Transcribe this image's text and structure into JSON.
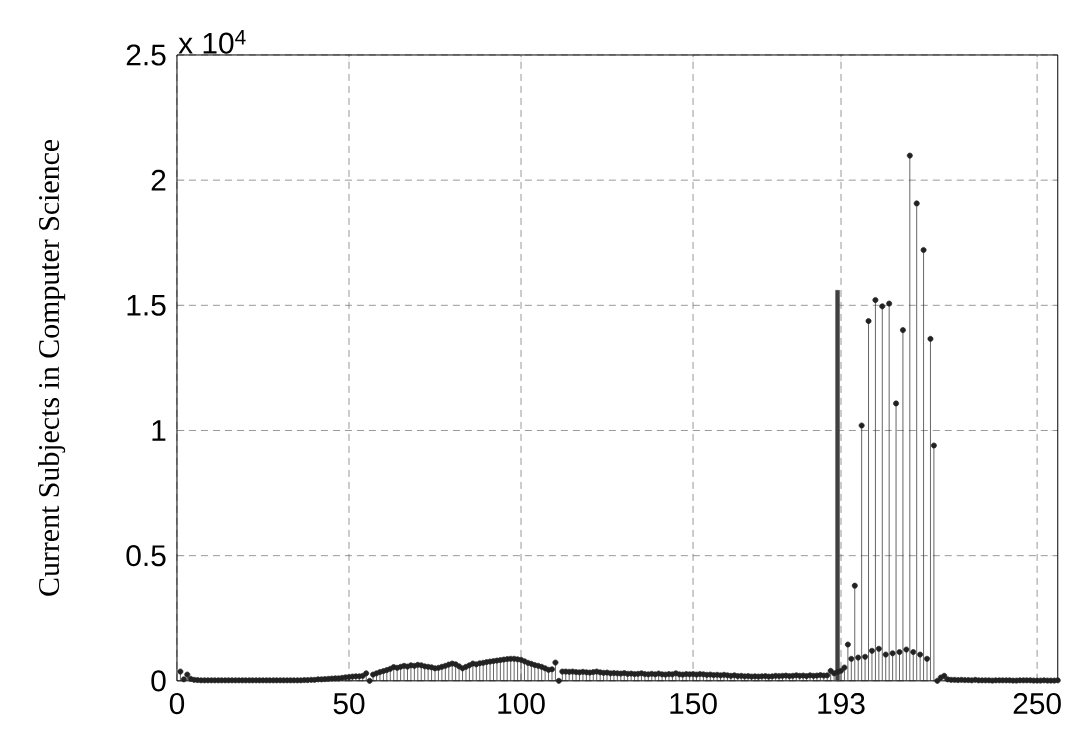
{
  "chart_data": {
    "type": "lollipop",
    "ylabel": "Current Subjects in Computer Science",
    "annotations": [
      "x 10$^{4}$"
    ],
    "xlim": [
      0,
      256
    ],
    "xticks": [
      0,
      50,
      100,
      150,
      193,
      250
    ],
    "ylim": [
      0,
      2.5
    ],
    "yticks": [
      0,
      0.5,
      1,
      1.5,
      2,
      2.5
    ],
    "grid": true,
    "marker": "circle",
    "series": [
      {
        "color": "#222222",
        "x": [
          1,
          2,
          3,
          4,
          5,
          6,
          7,
          8,
          9,
          10,
          11,
          12,
          13,
          14,
          15,
          16,
          17,
          18,
          19,
          20,
          21,
          22,
          23,
          24,
          25,
          26,
          27,
          28,
          29,
          30,
          31,
          32,
          33,
          34,
          35,
          36,
          37,
          38,
          39,
          40,
          41,
          42,
          43,
          44,
          45,
          46,
          47,
          48,
          49,
          50,
          51,
          52,
          53,
          54,
          55,
          56,
          57,
          58,
          59,
          60,
          61,
          62,
          63,
          64,
          65,
          66,
          67,
          68,
          69,
          70,
          71,
          72,
          73,
          74,
          75,
          76,
          77,
          78,
          79,
          80,
          81,
          82,
          83,
          84,
          85,
          86,
          87,
          88,
          89,
          90,
          91,
          92,
          93,
          94,
          95,
          96,
          97,
          98,
          99,
          100,
          101,
          102,
          103,
          104,
          105,
          106,
          107,
          108,
          109,
          110,
          111,
          112,
          113,
          114,
          115,
          116,
          117,
          118,
          119,
          120,
          121,
          122,
          123,
          124,
          125,
          126,
          127,
          128,
          129,
          130,
          131,
          132,
          133,
          134,
          135,
          136,
          137,
          138,
          139,
          140,
          141,
          142,
          143,
          144,
          145,
          146,
          147,
          148,
          149,
          150,
          151,
          152,
          153,
          154,
          155,
          156,
          157,
          158,
          159,
          160,
          161,
          162,
          163,
          164,
          165,
          166,
          167,
          168,
          169,
          170,
          171,
          172,
          173,
          174,
          175,
          176,
          177,
          178,
          179,
          180,
          181,
          182,
          183,
          184,
          185,
          186,
          187,
          188,
          189,
          190,
          191,
          192,
          193,
          194,
          195,
          196,
          197,
          198,
          199,
          200,
          201,
          202,
          203,
          204,
          205,
          206,
          207,
          208,
          209,
          210,
          211,
          212,
          213,
          214,
          215,
          216,
          217,
          218,
          219,
          220,
          221,
          222,
          223,
          224,
          225,
          226,
          227,
          228,
          229,
          230,
          231,
          232,
          233,
          234,
          235,
          236,
          237,
          238,
          239,
          240,
          241,
          242,
          243,
          244,
          245,
          246,
          247,
          248,
          249,
          250,
          251,
          252,
          253,
          254,
          255,
          256
        ],
        "values": [
          0.037,
          0.006,
          0.025,
          0.008,
          0.004,
          0.003,
          0.002,
          0.002,
          0.002,
          0.002,
          0.002,
          0.002,
          0.002,
          0.002,
          0.002,
          0.002,
          0.002,
          0.002,
          0.002,
          0.002,
          0.002,
          0.002,
          0.002,
          0.002,
          0.002,
          0.002,
          0.002,
          0.002,
          0.002,
          0.002,
          0.002,
          0.002,
          0.002,
          0.002,
          0.002,
          0.002,
          0.003,
          0.003,
          0.004,
          0.004,
          0.006,
          0.006,
          0.007,
          0.008,
          0.009,
          0.01,
          0.01,
          0.012,
          0.014,
          0.015,
          0.017,
          0.018,
          0.018,
          0.02,
          0.03,
          0,
          0.025,
          0.03,
          0.035,
          0.039,
          0.043,
          0.048,
          0.055,
          0.052,
          0.056,
          0.06,
          0.057,
          0.062,
          0.06,
          0.064,
          0.062,
          0.058,
          0.056,
          0.054,
          0.05,
          0.052,
          0.056,
          0.06,
          0.065,
          0.069,
          0.066,
          0.058,
          0.05,
          0.056,
          0.062,
          0.069,
          0.066,
          0.07,
          0.072,
          0.075,
          0.077,
          0.079,
          0.081,
          0.083,
          0.085,
          0.087,
          0.088,
          0.088,
          0.086,
          0.084,
          0.078,
          0.072,
          0.068,
          0.063,
          0.06,
          0.056,
          0.05,
          0.044,
          0.046,
          0.073,
          0,
          0.037,
          0.037,
          0.036,
          0.037,
          0.035,
          0.034,
          0.036,
          0.034,
          0.033,
          0.035,
          0.037,
          0.034,
          0.032,
          0.033,
          0.03,
          0.031,
          0.03,
          0.029,
          0.031,
          0.028,
          0.029,
          0.027,
          0.028,
          0.03,
          0.027,
          0.026,
          0.028,
          0.026,
          0.029,
          0.026,
          0.025,
          0.027,
          0.026,
          0.03,
          0.026,
          0.025,
          0.027,
          0.026,
          0.027,
          0.025,
          0.027,
          0.026,
          0.024,
          0.025,
          0.023,
          0.024,
          0.022,
          0.024,
          0.022,
          0.02,
          0.022,
          0.019,
          0.02,
          0.018,
          0.019,
          0.017,
          0.018,
          0.017,
          0.018,
          0.019,
          0.017,
          0.018,
          0.02,
          0.019,
          0.02,
          0.021,
          0.019,
          0.02,
          0.022,
          0.02,
          0.021,
          0.019,
          0.022,
          0.02,
          0.021,
          0.023,
          0.021,
          0.022,
          0.04,
          0.03,
          0.035,
          0.04,
          0.053,
          0.145,
          0.088,
          0.38,
          0.093,
          1.02,
          0.096,
          1.437,
          0.12,
          1.521,
          0.128,
          1.496,
          0.105,
          1.507,
          0.11,
          1.108,
          0.115,
          1.401,
          0.125,
          2.098,
          0.115,
          1.907,
          0.105,
          1.721,
          0.088,
          1.366,
          0.94,
          0,
          0.013,
          0.02,
          0.006,
          0.004,
          0.004,
          0.003,
          0.004,
          0.003,
          0.003,
          0.002,
          0.004,
          0.002,
          0.002,
          0.002,
          0.002,
          0.001,
          0.002,
          0.002,
          0.002,
          0.002,
          0.002,
          0.001,
          0.001,
          0.002,
          0.002,
          0.002,
          0.002,
          0.001,
          0.001,
          0.001,
          0.002,
          0.001,
          0.001,
          0.001,
          0.002
        ]
      },
      {
        "type": "bar",
        "color": "#404040",
        "x": [
          192
        ],
        "values": [
          1.56
        ]
      }
    ]
  }
}
